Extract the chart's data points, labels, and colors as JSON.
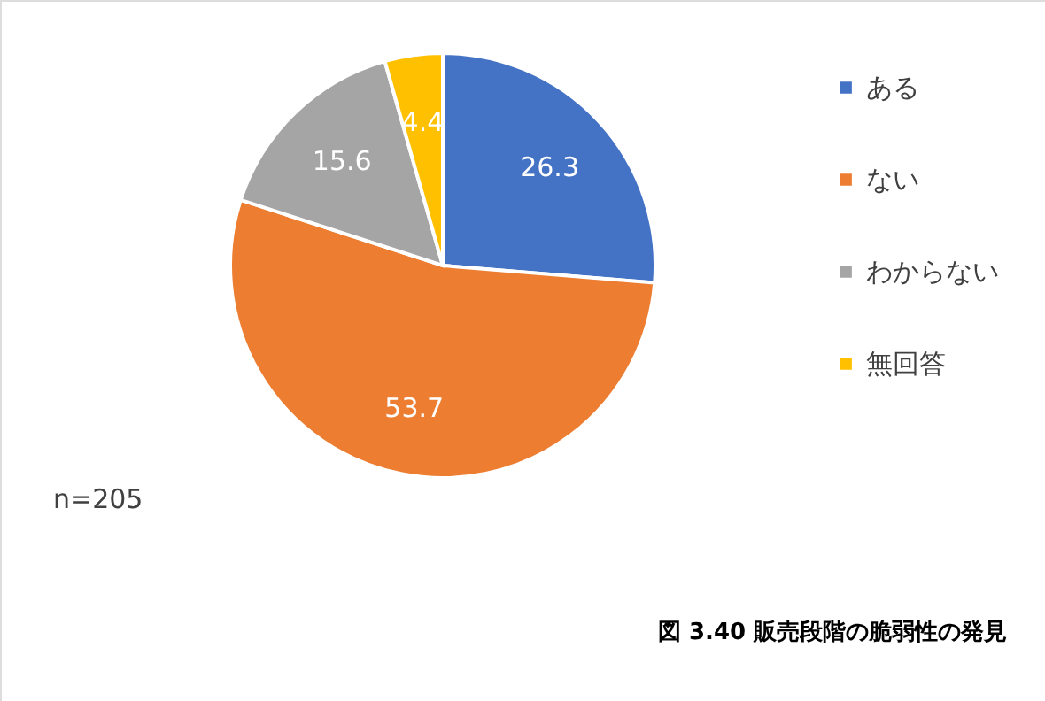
{
  "chart_data": {
    "type": "pie",
    "title": "図 3.40 販売段階の脆弱性の発見",
    "categories": [
      "ある",
      "ない",
      "わからない",
      "無回答"
    ],
    "values": [
      26.3,
      53.7,
      15.6,
      4.4
    ],
    "colors": [
      "#4472c4",
      "#ed7d31",
      "#a5a5a5",
      "#ffc000"
    ],
    "data_labels": true,
    "legend": "right",
    "annotations": [
      "n=205"
    ]
  }
}
